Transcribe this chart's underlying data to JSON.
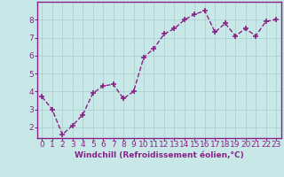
{
  "x": [
    0,
    1,
    2,
    3,
    4,
    5,
    6,
    7,
    8,
    9,
    10,
    11,
    12,
    13,
    14,
    15,
    16,
    17,
    18,
    19,
    20,
    21,
    22,
    23
  ],
  "y": [
    3.7,
    3.0,
    1.6,
    2.1,
    2.7,
    3.9,
    4.3,
    4.4,
    3.6,
    4.0,
    5.9,
    6.4,
    7.2,
    7.5,
    8.0,
    8.3,
    8.5,
    7.3,
    7.8,
    7.1,
    7.5,
    7.1,
    7.9,
    8.0
  ],
  "line_color": "#882288",
  "marker": "+",
  "marker_size": 4,
  "marker_ew": 1.2,
  "bg_color": "#c8e8e8",
  "grid_color": "#aacccc",
  "xlabel": "Windchill (Refroidissement éolien,°C)",
  "xlabel_color": "#882288",
  "tick_color": "#882288",
  "axis_color": "#882288",
  "ylim": [
    1.4,
    9.0
  ],
  "xlim": [
    -0.5,
    23.5
  ],
  "yticks": [
    2,
    3,
    4,
    5,
    6,
    7,
    8
  ],
  "xticks": [
    0,
    1,
    2,
    3,
    4,
    5,
    6,
    7,
    8,
    9,
    10,
    11,
    12,
    13,
    14,
    15,
    16,
    17,
    18,
    19,
    20,
    21,
    22,
    23
  ],
  "tick_fontsize": 6.5,
  "xlabel_fontsize": 6.5,
  "linewidth": 1.0
}
